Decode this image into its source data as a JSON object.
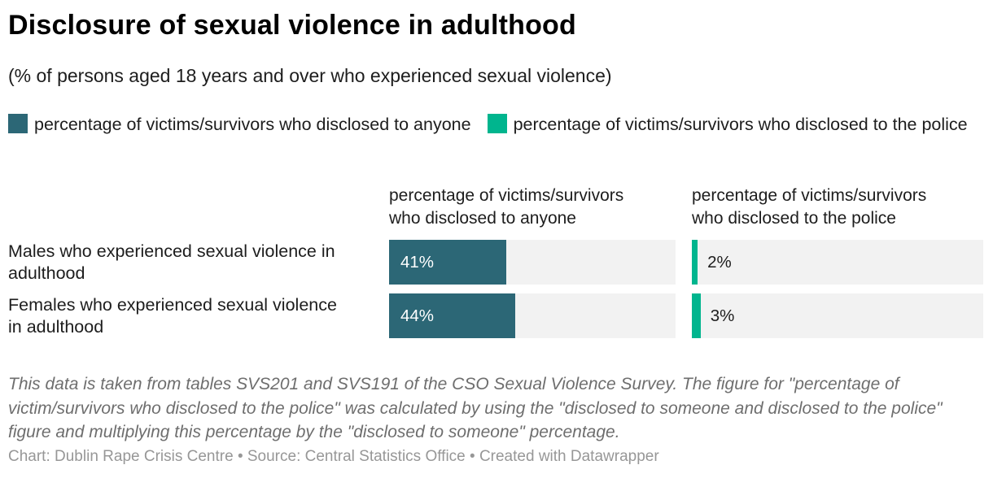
{
  "chart_data": {
    "type": "bar",
    "orientation": "horizontal",
    "title": "Disclosure of sexual violence in adulthood",
    "subtitle": "(% of persons aged 18 years and over who experienced sexual violence)",
    "xlim": [
      0,
      100
    ],
    "unit": "%",
    "grid": false,
    "legend_position": "top",
    "track_color": "#f2f2f2",
    "categories": [
      "Males who experienced sexual violence in adulthood",
      "Females who experienced sexual violence in adulthood"
    ],
    "category_labels": [
      "Males who experienced sexual violence in\nadulthood",
      "Females who experienced sexual violence\nin adulthood"
    ],
    "column_headers": [
      "percentage of victims/survivors\nwho disclosed to anyone",
      "percentage of victims/survivors\nwho disclosed to the police"
    ],
    "series": [
      {
        "name": "percentage of victims/survivors who disclosed to anyone",
        "color": "#2c6776",
        "values": [
          41,
          44
        ],
        "value_labels": [
          "41%",
          "44%"
        ],
        "label_position": "inside"
      },
      {
        "name": "percentage of victims/survivors who disclosed to the police",
        "color": "#00b58e",
        "values": [
          2,
          3
        ],
        "value_labels": [
          "2%",
          "3%"
        ],
        "label_position": "outside"
      }
    ]
  },
  "legend": {
    "items": [
      {
        "label": "percentage of victims/survivors who disclosed to anyone",
        "color": "#2c6776"
      },
      {
        "label": "percentage of victims/survivors who disclosed to the police",
        "color": "#00b58e"
      }
    ]
  },
  "footer": {
    "note": "This data is taken from tables SVS201 and SVS191 of the CSO Sexual Violence Survey. The figure for \"percentage of victim/survivors who disclosed to the police\" was calculated by using the \"disclosed to someone and disclosed to the police\" figure and multiplying this percentage by the \"disclosed to someone\" percentage.",
    "credit": "Chart: Dublin Rape Crisis Centre • Source: Central Statistics Office • Created with Datawrapper"
  }
}
